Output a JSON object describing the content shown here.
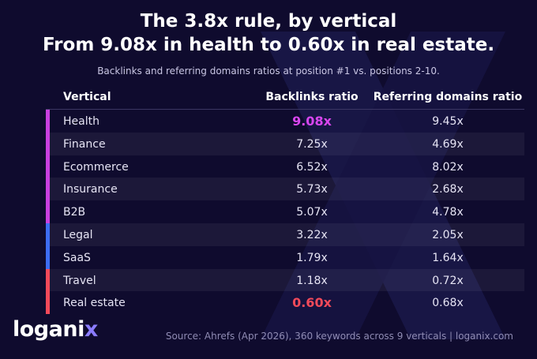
{
  "title_line1": "The 3.8x rule, by vertical",
  "title_line2": "From 9.08x in health to 0.60x in real estate.",
  "subtitle": "Backlinks and referring domains ratios at position #1 vs. positions 2-10.",
  "source": "Source: Ahrefs (Apr 2026), 360 keywords across 9 verticals  |  loganix.com",
  "logo": {
    "prefix": "logani",
    "accent": "x"
  },
  "colors": {
    "background": "#0f0b2e",
    "group_purple": "#c940e0",
    "group_blue": "#3d6df2",
    "group_red": "#f24a5a",
    "highlight_max": "#d946ef",
    "highlight_min": "#f24a5a",
    "logo_accent": "#8b7cff"
  },
  "chart_data": {
    "type": "table",
    "columns": [
      "Vertical",
      "Backlinks ratio",
      "Referring domains ratio"
    ],
    "rows": [
      {
        "vertical": "Health",
        "backlinks": "9.08x",
        "refdomains": "9.45x",
        "group": "purple",
        "highlight": "max"
      },
      {
        "vertical": "Finance",
        "backlinks": "7.25x",
        "refdomains": "4.69x",
        "group": "purple"
      },
      {
        "vertical": "Ecommerce",
        "backlinks": "6.52x",
        "refdomains": "8.02x",
        "group": "purple"
      },
      {
        "vertical": "Insurance",
        "backlinks": "5.73x",
        "refdomains": "2.68x",
        "group": "purple"
      },
      {
        "vertical": "B2B",
        "backlinks": "5.07x",
        "refdomains": "4.78x",
        "group": "purple"
      },
      {
        "vertical": "Legal",
        "backlinks": "3.22x",
        "refdomains": "2.05x",
        "group": "blue"
      },
      {
        "vertical": "SaaS",
        "backlinks": "1.79x",
        "refdomains": "1.64x",
        "group": "blue"
      },
      {
        "vertical": "Travel",
        "backlinks": "1.18x",
        "refdomains": "0.72x",
        "group": "red"
      },
      {
        "vertical": "Real estate",
        "backlinks": "0.60x",
        "refdomains": "0.68x",
        "group": "red",
        "highlight": "min"
      }
    ]
  }
}
